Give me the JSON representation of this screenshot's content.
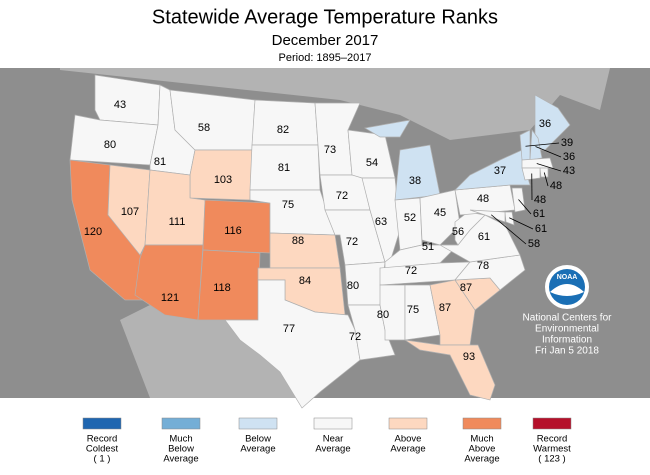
{
  "header": {
    "title": "Statewide Average Temperature Ranks",
    "subtitle": "December 2017",
    "period": "Period: 1895–2017"
  },
  "legend": {
    "items": [
      {
        "label": [
          "Record",
          "Coldest",
          "( 1 )"
        ],
        "color": "#1f66b0"
      },
      {
        "label": [
          "Much",
          "Below",
          "Average"
        ],
        "color": "#74aed6"
      },
      {
        "label": [
          "Below",
          "Average"
        ],
        "color": "#cfe2f2"
      },
      {
        "label": [
          "Near",
          "Average"
        ],
        "color": "#f7f7f7"
      },
      {
        "label": [
          "Above",
          "Average"
        ],
        "color": "#fdd8c0"
      },
      {
        "label": [
          "Much",
          "Above",
          "Average"
        ],
        "color": "#f08a5c"
      },
      {
        "label": [
          "Record",
          "Warmest",
          "( 123 )"
        ],
        "color": "#b5102a"
      }
    ]
  },
  "states": [
    {
      "value": 43,
      "category": 3
    },
    {
      "value": 80,
      "category": 3
    },
    {
      "value": 120,
      "category": 5
    },
    {
      "value": 107,
      "category": 4
    },
    {
      "value": 81,
      "category": 3
    },
    {
      "value": 58,
      "category": 3
    },
    {
      "value": 103,
      "category": 4
    },
    {
      "value": 111,
      "category": 4
    },
    {
      "value": 121,
      "category": 5
    },
    {
      "value": 116,
      "category": 5
    },
    {
      "value": 118,
      "category": 5
    },
    {
      "value": 82,
      "category": 3
    },
    {
      "value": 81,
      "category": 3
    },
    {
      "value": 75,
      "category": 3
    },
    {
      "value": 88,
      "category": 4
    },
    {
      "value": 84,
      "category": 4
    },
    {
      "value": 77,
      "category": 3
    },
    {
      "value": 73,
      "category": 3
    },
    {
      "value": 72,
      "category": 3
    },
    {
      "value": 72,
      "category": 3
    },
    {
      "value": 80,
      "category": 3
    },
    {
      "value": 72,
      "category": 3
    },
    {
      "value": 54,
      "category": 3
    },
    {
      "value": 63,
      "category": 3
    },
    {
      "value": 38,
      "category": 2
    },
    {
      "value": 52,
      "category": 3
    },
    {
      "value": 45,
      "category": 3
    },
    {
      "value": 51,
      "category": 3
    },
    {
      "value": 72,
      "category": 3
    },
    {
      "value": 80,
      "category": 3
    },
    {
      "value": 75,
      "category": 3
    },
    {
      "value": 87,
      "category": 4
    },
    {
      "value": 93,
      "category": 4
    },
    {
      "value": 87,
      "category": 4
    },
    {
      "value": 78,
      "category": 3
    },
    {
      "value": 61,
      "category": 3
    },
    {
      "value": 56,
      "category": 3
    },
    {
      "value": 48,
      "category": 3
    },
    {
      "value": 37,
      "category": 2
    },
    {
      "value": 36,
      "category": 2
    },
    {
      "value": 39,
      "category": 2
    },
    {
      "value": 36,
      "category": 2
    },
    {
      "value": 43,
      "category": 3
    },
    {
      "value": 48,
      "category": 3
    },
    {
      "value": 48,
      "category": 3
    },
    {
      "value": 61,
      "category": 3
    },
    {
      "value": 61,
      "category": 3
    },
    {
      "value": 58,
      "category": 3
    }
  ],
  "logo": "NOAA",
  "credits": [
    "National Centers for",
    "Environmental",
    "Information",
    "Fri Jan  5 2018"
  ]
}
